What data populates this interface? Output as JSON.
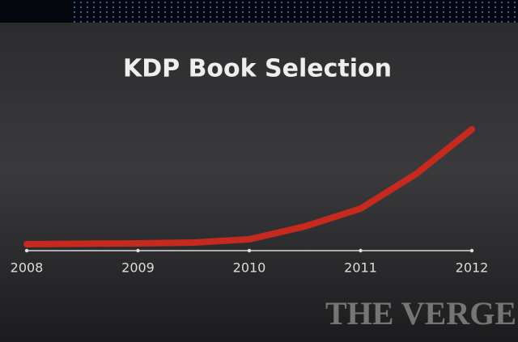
{
  "chart_data": {
    "type": "line",
    "title": "KDP Book Selection",
    "x": [
      2008,
      2009,
      2009.5,
      2010,
      2010.5,
      2011,
      2011.5,
      2012
    ],
    "values": [
      0,
      1,
      2,
      6,
      22,
      44,
      87,
      142
    ],
    "color": "#c62a1f",
    "xlim": [
      2008,
      2012
    ],
    "xticks": [
      2008,
      2009,
      2010,
      2011,
      2012
    ],
    "watermark": "THE VERGE"
  }
}
